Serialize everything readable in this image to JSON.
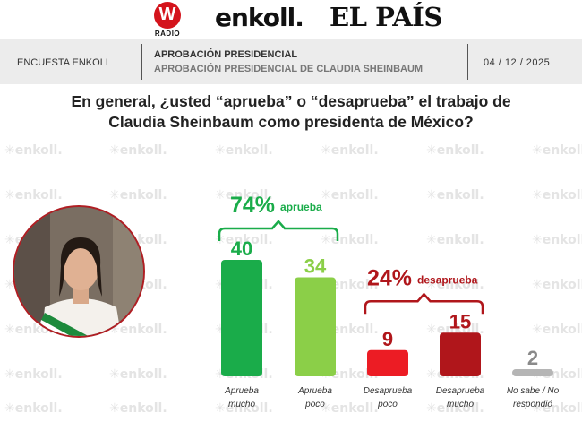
{
  "logos": {
    "wradio_mark": "W",
    "wradio_label": "RADIO",
    "enkoll": "enkoll.",
    "elpais": "EL PAÍS"
  },
  "header": {
    "left": "ENCUESTA ENKOLL",
    "title": "APROBACIÓN PRESIDENCIAL",
    "subtitle": "APROBACIÓN PRESIDENCIAL DE CLAUDIA SHEINBAUM",
    "date": "04 / 12 / 2025"
  },
  "question": {
    "line1": "En general, ¿usted “aprueba” o “desaprueba” el trabajo de",
    "line2": "Claudia Sheinbaum como presidenta de México?"
  },
  "watermark_text": "enkoll.",
  "colors": {
    "dark_green": "#1aac4a",
    "light_green": "#8bcf48",
    "bright_red": "#ec1c24",
    "dark_red": "#b0161b",
    "gray": "#b5b5b5"
  },
  "chart_data": {
    "type": "bar",
    "categories": [
      [
        "Aprueba",
        "mucho"
      ],
      [
        "Aprueba",
        "poco"
      ],
      [
        "Desaprueba",
        "poco"
      ],
      [
        "Desaprueba",
        "mucho"
      ],
      [
        "No sabe / No",
        "respondió"
      ]
    ],
    "values": [
      40,
      34,
      9,
      15,
      2
    ],
    "value_labels": [
      "40",
      "34",
      "9",
      "15",
      "2"
    ],
    "bar_colors": [
      "#1aac4a",
      "#8bcf48",
      "#ec1c24",
      "#b0161b",
      "#b5b5b5"
    ],
    "label_colors": [
      "#1aac4a",
      "#8bcf48",
      "#b0161b",
      "#b0161b",
      "#8a8a8a"
    ],
    "ylim": [
      0,
      40
    ],
    "groups": [
      {
        "pct": "74%",
        "word": "aprueba",
        "color": "#1aac4a",
        "bars": [
          0,
          1
        ]
      },
      {
        "pct": "24%",
        "word": "desaprueba",
        "color": "#b0161b",
        "bars": [
          2,
          3
        ]
      }
    ]
  }
}
